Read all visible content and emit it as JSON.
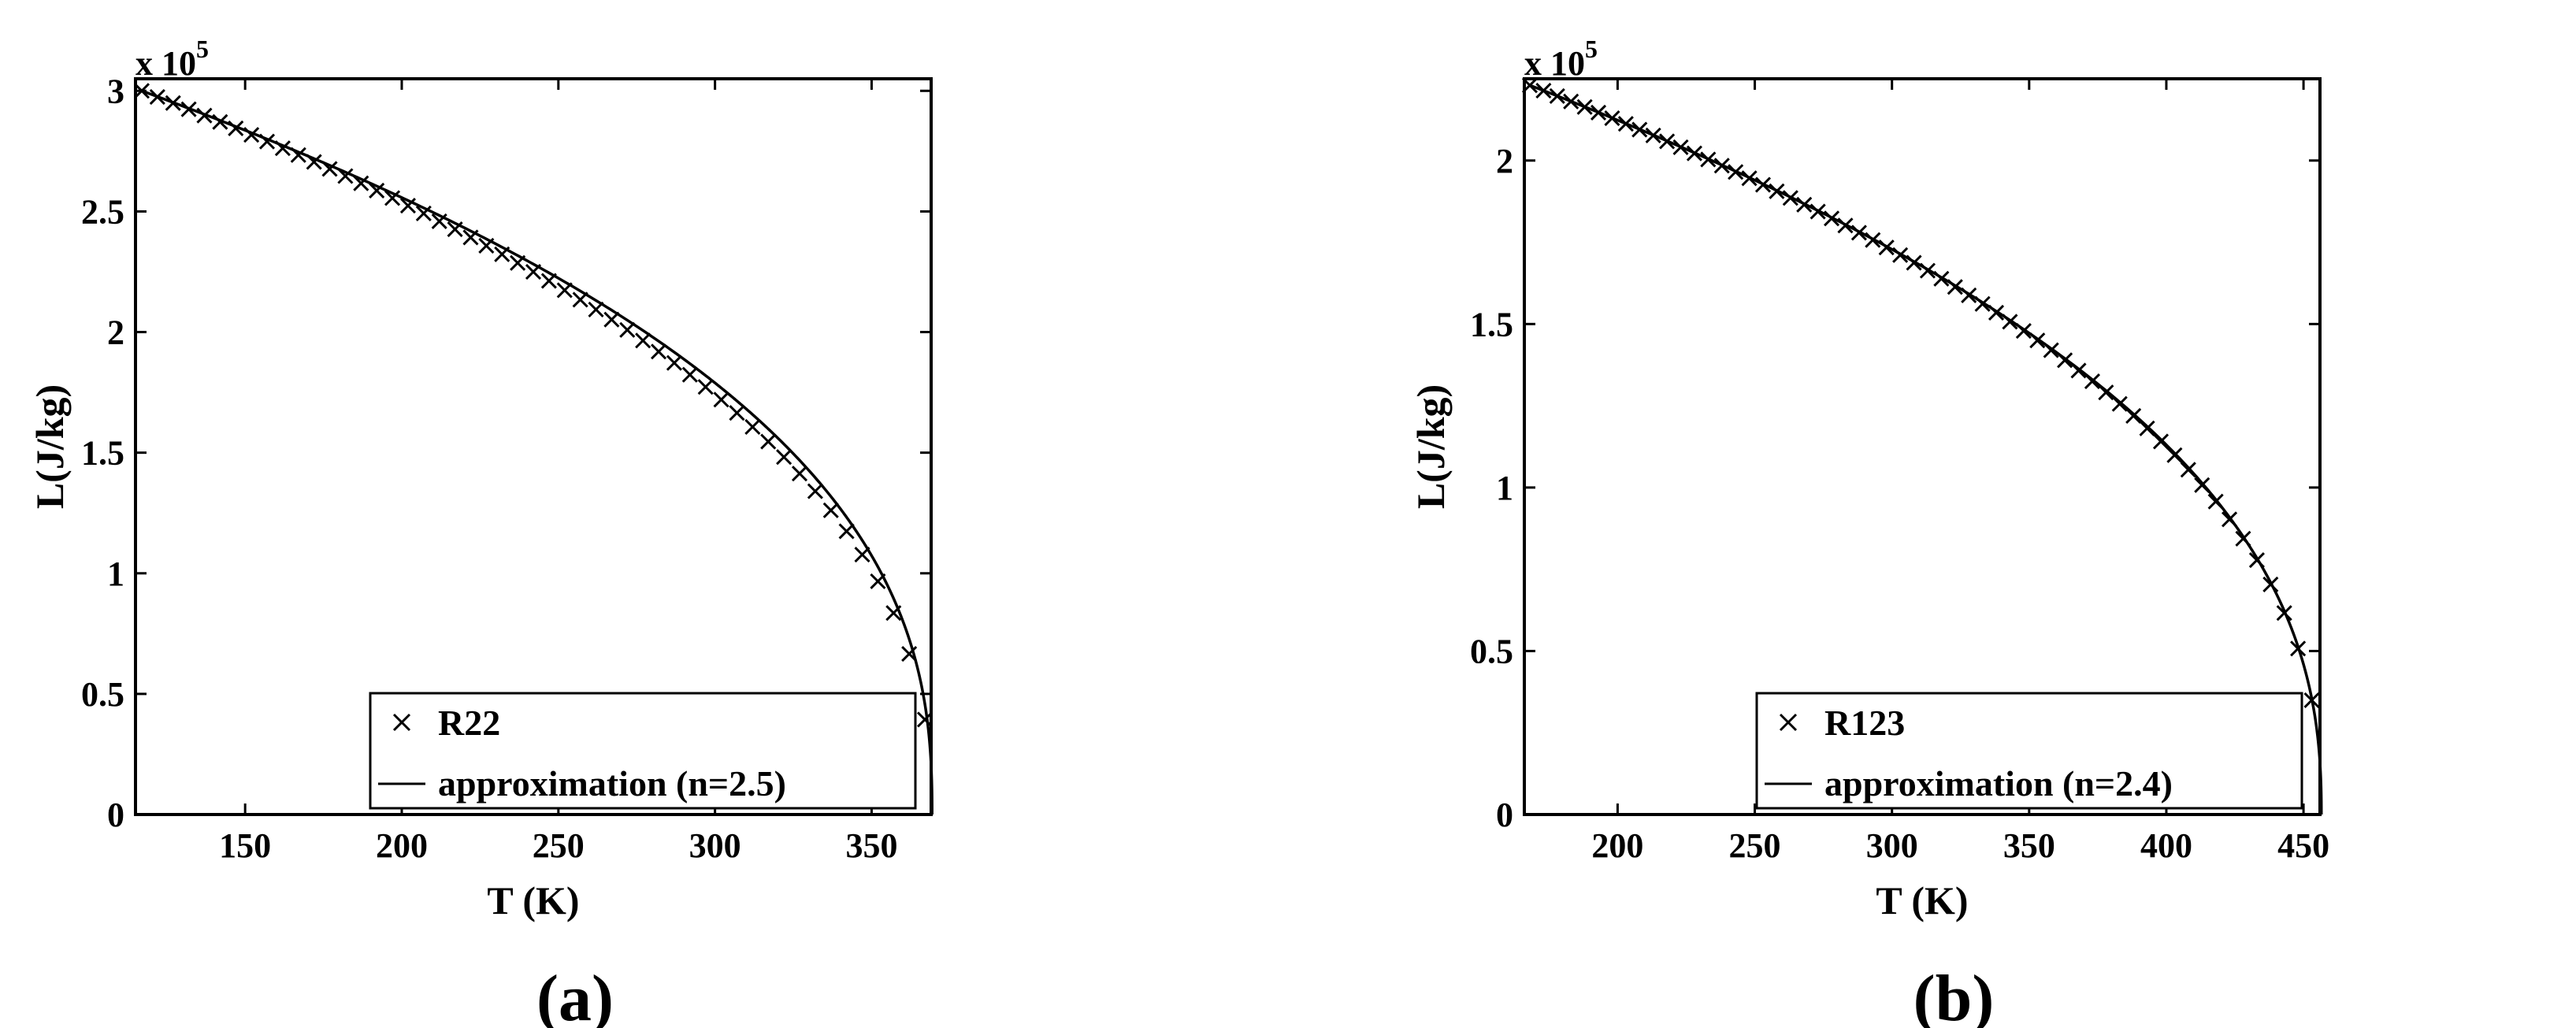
{
  "chart_data": [
    {
      "type": "line",
      "panel": "(a)",
      "xlabel": "T (K)",
      "ylabel": "L(J/kg)",
      "y_multiplier": "x 10",
      "y_multiplier_exp": "5",
      "xlim": [
        115,
        369
      ],
      "ylim": [
        0,
        3.05
      ],
      "xticks": [
        150,
        200,
        250,
        300,
        350
      ],
      "yticks": [
        0,
        0.5,
        1,
        1.5,
        2,
        2.5,
        3
      ],
      "ytick_labels": [
        "0",
        "0.5",
        "1",
        "1.5",
        "2",
        "2.5",
        "3"
      ],
      "legend": {
        "position": "bottom-right",
        "entries": [
          "R22",
          "approximation (n=2.5)"
        ]
      },
      "series": [
        {
          "name": "R22",
          "marker": "x",
          "tc": 369,
          "l_ref": 3.0,
          "t_ref": 117,
          "exponent": 0.42,
          "t_start": 117,
          "t_end": 367,
          "step": 5
        },
        {
          "name": "approximation (n=2.5)",
          "marker": "line",
          "tc": 369.3,
          "l_ref": 3.0,
          "t_ref": 117,
          "exponent": 0.4,
          "t_start": 117,
          "t_end": 369.3
        }
      ]
    },
    {
      "type": "line",
      "panel": "(b)",
      "xlabel": "T (K)",
      "ylabel": "L(J/kg)",
      "y_multiplier": "x 10",
      "y_multiplier_exp": "5",
      "xlim": [
        166,
        456
      ],
      "ylim": [
        0,
        2.25
      ],
      "xticks": [
        200,
        250,
        300,
        350,
        400,
        450
      ],
      "yticks": [
        0,
        0.5,
        1,
        1.5,
        2
      ],
      "ytick_labels": [
        "0",
        "0.5",
        "1",
        "1.5",
        "2"
      ],
      "legend": {
        "position": "bottom-right",
        "entries": [
          "R123",
          "approximation (n=2.4)"
        ]
      },
      "series": [
        {
          "name": "R123",
          "marker": "x",
          "tc": 456.5,
          "l_ref": 2.23,
          "t_ref": 168,
          "exponent": 0.42,
          "t_start": 168,
          "t_end": 455,
          "step": 5
        },
        {
          "name": "approximation (n=2.4)",
          "marker": "line",
          "tc": 456.5,
          "l_ref": 2.23,
          "t_ref": 168,
          "exponent": 0.4167,
          "t_start": 168,
          "t_end": 456.5
        }
      ]
    }
  ]
}
